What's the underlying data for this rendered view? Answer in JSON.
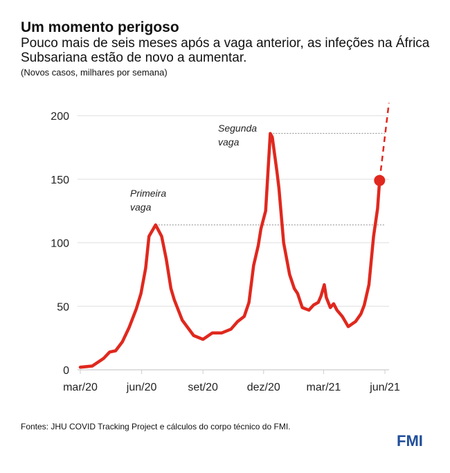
{
  "title": "Um momento perigoso",
  "subtitle": "Pouco mais de seis meses após a vaga anterior, as infeções na África Subsariana estão de novo a aumentar.",
  "unit": "(Novos casos, milhares por semana)",
  "source": "Fontes: JHU COVID Tracking Project e cálculos do corpo técnico do FMI.",
  "logo": "FMI",
  "chart_data": {
    "type": "line",
    "ylim": [
      0,
      200
    ],
    "yticks": [
      0,
      50,
      100,
      150,
      200
    ],
    "xticks": [
      {
        "label": "mar/20",
        "date": "2020-03-01"
      },
      {
        "label": "jun/20",
        "date": "2020-06-01"
      },
      {
        "label": "set/20",
        "date": "2020-09-01"
      },
      {
        "label": "dez/20",
        "date": "2020-12-01"
      },
      {
        "label": "mar/21",
        "date": "2021-03-01"
      },
      {
        "label": "jun/21",
        "date": "2021-06-01"
      }
    ],
    "grid": true,
    "color": "#e0281e",
    "series": [
      {
        "points": [
          [
            "2020-03-01",
            2
          ],
          [
            "2020-03-19",
            3
          ],
          [
            "2020-04-05",
            9
          ],
          [
            "2020-04-14",
            14
          ],
          [
            "2020-04-23",
            15
          ],
          [
            "2020-05-03",
            22
          ],
          [
            "2020-05-13",
            33
          ],
          [
            "2020-05-24",
            48
          ],
          [
            "2020-05-31",
            60
          ],
          [
            "2020-06-07",
            80
          ],
          [
            "2020-06-12",
            105
          ],
          [
            "2020-06-22",
            114
          ],
          [
            "2020-07-01",
            105
          ],
          [
            "2020-07-08",
            87
          ],
          [
            "2020-07-15",
            64
          ],
          [
            "2020-07-20",
            55
          ],
          [
            "2020-08-01",
            39
          ],
          [
            "2020-08-18",
            27
          ],
          [
            "2020-09-01",
            24
          ],
          [
            "2020-09-15",
            29
          ],
          [
            "2020-09-29",
            29
          ],
          [
            "2020-10-13",
            32
          ],
          [
            "2020-10-23",
            38
          ],
          [
            "2020-11-02",
            42
          ],
          [
            "2020-11-09",
            53
          ],
          [
            "2020-11-16",
            82
          ],
          [
            "2020-11-23",
            98
          ],
          [
            "2020-11-27",
            111
          ],
          [
            "2020-12-04",
            125
          ],
          [
            "2020-12-11",
            186
          ],
          [
            "2020-12-14",
            183
          ],
          [
            "2020-12-21",
            156
          ],
          [
            "2020-12-24",
            143
          ],
          [
            "2020-12-31",
            100
          ],
          [
            "2021-01-09",
            75
          ],
          [
            "2021-01-16",
            64
          ],
          [
            "2021-01-21",
            60
          ],
          [
            "2021-01-28",
            49
          ],
          [
            "2021-02-07",
            47
          ],
          [
            "2021-02-14",
            51
          ],
          [
            "2021-02-21",
            53
          ],
          [
            "2021-02-25",
            58
          ],
          [
            "2021-03-02",
            67
          ],
          [
            "2021-03-05",
            57
          ],
          [
            "2021-03-11",
            49
          ],
          [
            "2021-03-16",
            52
          ],
          [
            "2021-03-21",
            47
          ],
          [
            "2021-03-29",
            42
          ],
          [
            "2021-04-07",
            34
          ],
          [
            "2021-04-18",
            38
          ],
          [
            "2021-04-26",
            44
          ],
          [
            "2021-05-01",
            51
          ],
          [
            "2021-05-08",
            67
          ],
          [
            "2021-05-15",
            105
          ],
          [
            "2021-05-21",
            127
          ],
          [
            "2021-05-24",
            149
          ]
        ]
      }
    ],
    "projection": [
      [
        "2021-05-24",
        149
      ],
      [
        "2021-06-07",
        210
      ]
    ],
    "annotations": [
      {
        "text1": "Primeira",
        "text2": "vaga",
        "value": 114,
        "date": "2020-06-22"
      },
      {
        "text1": "Segunda",
        "text2": "vaga",
        "value": 186,
        "date": "2020-12-11"
      }
    ]
  }
}
